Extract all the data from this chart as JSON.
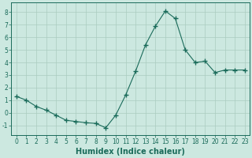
{
  "x": [
    0,
    1,
    2,
    3,
    4,
    5,
    6,
    7,
    8,
    9,
    10,
    11,
    12,
    13,
    14,
    15,
    16,
    17,
    18,
    19,
    20,
    21,
    22,
    23
  ],
  "y": [
    1.3,
    1.0,
    0.5,
    0.2,
    -0.2,
    -0.6,
    -0.7,
    -0.8,
    -0.85,
    -1.2,
    -0.2,
    1.4,
    3.3,
    5.4,
    6.9,
    8.1,
    7.5,
    5.0,
    4.0,
    4.1,
    3.2,
    3.4,
    3.4,
    3.4
  ],
  "line_color": "#1a6b5a",
  "marker": "+",
  "marker_size": 4,
  "bg_color": "#cce8e0",
  "grid_color": "#aaccbf",
  "xlabel": "Humidex (Indice chaleur)",
  "ylim": [
    -1.8,
    8.8
  ],
  "xlim": [
    -0.5,
    23.5
  ],
  "yticks": [
    -1,
    0,
    1,
    2,
    3,
    4,
    5,
    6,
    7,
    8
  ],
  "xticks": [
    0,
    1,
    2,
    3,
    4,
    5,
    6,
    7,
    8,
    9,
    10,
    11,
    12,
    13,
    14,
    15,
    16,
    17,
    18,
    19,
    20,
    21,
    22,
    23
  ],
  "tick_color": "#1a6b5a",
  "label_fontsize": 7,
  "tick_fontsize": 5.5,
  "spine_color": "#1a6b5a"
}
